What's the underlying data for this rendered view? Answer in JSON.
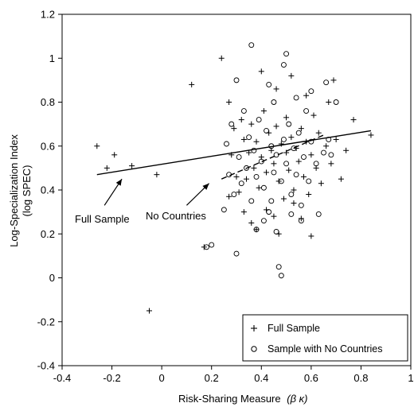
{
  "chart_data": {
    "type": "scatter",
    "xlabel": "Risk-Sharing Measure",
    "xlabel_symbol": "(β κ)",
    "ylabel_line1": "Log-Specialization Index",
    "ylabel_line2": "(log SPEC)",
    "xlim": [
      -0.4,
      1.0
    ],
    "ylim": [
      -0.4,
      1.2
    ],
    "x_ticks": [
      "-0.4",
      "-0.2",
      "0",
      "0.2",
      "0.4",
      "0.6",
      "0.8",
      "1"
    ],
    "y_ticks": [
      "-0.4",
      "-0.2",
      "0",
      "0.2",
      "0.4",
      "0.6",
      "0.8",
      "1",
      "1.2"
    ],
    "x_tick_values": [
      -0.4,
      -0.2,
      0,
      0.2,
      0.4,
      0.6,
      0.8,
      1.0
    ],
    "y_tick_values": [
      -0.4,
      -0.2,
      0,
      0.2,
      0.4,
      0.6,
      0.8,
      1.0,
      1.2
    ],
    "grid": false,
    "legend_position": "bottom-right",
    "annotations": [
      {
        "text": "Full Sample"
      },
      {
        "text": "No Countries"
      }
    ],
    "series": [
      {
        "name": "Full Sample",
        "marker": "plus",
        "points": [
          [
            -0.26,
            0.6
          ],
          [
            -0.22,
            0.5
          ],
          [
            -0.19,
            0.56
          ],
          [
            -0.12,
            0.51
          ],
          [
            -0.02,
            0.47
          ],
          [
            0.12,
            0.88
          ],
          [
            0.17,
            0.14
          ],
          [
            0.24,
            1.0
          ],
          [
            0.27,
            0.8
          ],
          [
            0.28,
            0.56
          ],
          [
            0.29,
            0.68
          ],
          [
            0.3,
            0.46
          ],
          [
            0.31,
            0.39
          ],
          [
            0.32,
            0.72
          ],
          [
            0.33,
            0.63
          ],
          [
            0.34,
            0.45
          ],
          [
            0.35,
            0.57
          ],
          [
            0.36,
            0.7
          ],
          [
            0.37,
            0.5
          ],
          [
            0.38,
            0.62
          ],
          [
            0.39,
            0.41
          ],
          [
            0.4,
            0.55
          ],
          [
            0.41,
            0.76
          ],
          [
            0.42,
            0.48
          ],
          [
            0.43,
            0.66
          ],
          [
            0.44,
            0.58
          ],
          [
            0.45,
            0.52
          ],
          [
            0.46,
            0.69
          ],
          [
            0.47,
            0.44
          ],
          [
            0.48,
            0.61
          ],
          [
            0.49,
            0.36
          ],
          [
            0.5,
            0.57
          ],
          [
            0.5,
            0.73
          ],
          [
            0.51,
            0.49
          ],
          [
            0.52,
            0.64
          ],
          [
            0.53,
            0.4
          ],
          [
            0.54,
            0.59
          ],
          [
            0.55,
            0.53
          ],
          [
            0.56,
            0.68
          ],
          [
            0.57,
            0.46
          ],
          [
            0.58,
            0.62
          ],
          [
            0.59,
            0.38
          ],
          [
            0.6,
            0.56
          ],
          [
            0.61,
            0.74
          ],
          [
            0.62,
            0.5
          ],
          [
            0.63,
            0.66
          ],
          [
            0.64,
            0.43
          ],
          [
            0.66,
            0.6
          ],
          [
            0.67,
            0.8
          ],
          [
            0.68,
            0.52
          ],
          [
            0.7,
            0.63
          ],
          [
            0.72,
            0.45
          ],
          [
            0.74,
            0.58
          ],
          [
            0.77,
            0.72
          ],
          [
            0.84,
            0.65
          ],
          [
            0.36,
            0.25
          ],
          [
            0.38,
            0.22
          ],
          [
            0.42,
            0.31
          ],
          [
            0.45,
            0.28
          ],
          [
            0.47,
            0.2
          ],
          [
            0.53,
            0.34
          ],
          [
            0.56,
            0.27
          ],
          [
            0.6,
            0.19
          ],
          [
            0.4,
            0.94
          ],
          [
            0.46,
            0.86
          ],
          [
            0.52,
            0.92
          ],
          [
            0.58,
            0.83
          ],
          [
            0.69,
            0.9
          ],
          [
            0.27,
            0.37
          ],
          [
            0.33,
            0.3
          ],
          [
            -0.05,
            -0.15
          ]
        ]
      },
      {
        "name": "Sample with No Countries",
        "marker": "circle",
        "points": [
          [
            0.18,
            0.14
          ],
          [
            0.2,
            0.15
          ],
          [
            0.25,
            0.31
          ],
          [
            0.26,
            0.61
          ],
          [
            0.27,
            0.47
          ],
          [
            0.28,
            0.7
          ],
          [
            0.29,
            0.38
          ],
          [
            0.3,
            0.9
          ],
          [
            0.3,
            0.11
          ],
          [
            0.31,
            0.55
          ],
          [
            0.32,
            0.43
          ],
          [
            0.33,
            0.76
          ],
          [
            0.34,
            0.5
          ],
          [
            0.35,
            0.64
          ],
          [
            0.36,
            1.06
          ],
          [
            0.36,
            0.35
          ],
          [
            0.37,
            0.58
          ],
          [
            0.38,
            0.46
          ],
          [
            0.39,
            0.72
          ],
          [
            0.4,
            0.53
          ],
          [
            0.41,
            0.41
          ],
          [
            0.42,
            0.67
          ],
          [
            0.43,
            0.3
          ],
          [
            0.44,
            0.6
          ],
          [
            0.45,
            0.48
          ],
          [
            0.45,
            0.8
          ],
          [
            0.46,
            0.56
          ],
          [
            0.47,
            0.05
          ],
          [
            0.48,
            0.01
          ],
          [
            0.48,
            0.44
          ],
          [
            0.49,
            0.63
          ],
          [
            0.49,
            0.97
          ],
          [
            0.5,
            1.02
          ],
          [
            0.5,
            0.52
          ],
          [
            0.51,
            0.7
          ],
          [
            0.52,
            0.38
          ],
          [
            0.53,
            0.59
          ],
          [
            0.54,
            0.47
          ],
          [
            0.55,
            0.66
          ],
          [
            0.56,
            0.33
          ],
          [
            0.57,
            0.55
          ],
          [
            0.58,
            0.76
          ],
          [
            0.59,
            0.44
          ],
          [
            0.6,
            0.62
          ],
          [
            0.62,
            0.52
          ],
          [
            0.63,
            0.29
          ],
          [
            0.65,
            0.57
          ],
          [
            0.66,
            0.89
          ],
          [
            0.67,
            0.63
          ],
          [
            0.68,
            0.56
          ],
          [
            0.7,
            0.8
          ],
          [
            0.38,
            0.22
          ],
          [
            0.41,
            0.26
          ],
          [
            0.44,
            0.35
          ],
          [
            0.46,
            0.21
          ],
          [
            0.52,
            0.29
          ],
          [
            0.56,
            0.26
          ],
          [
            0.6,
            0.85
          ],
          [
            0.43,
            0.88
          ],
          [
            0.54,
            0.82
          ]
        ]
      }
    ],
    "lines": [
      {
        "name": "Full Sample fit",
        "style": "solid",
        "from": [
          -0.26,
          0.47
        ],
        "to": [
          0.84,
          0.67
        ]
      },
      {
        "name": "No Countries fit",
        "style": "dashed",
        "from": [
          0.24,
          0.45
        ],
        "to": [
          0.65,
          0.65
        ]
      }
    ],
    "arrows": [
      {
        "from": [
          -0.23,
          0.33
        ],
        "to": [
          -0.16,
          0.45
        ]
      },
      {
        "from": [
          0.1,
          0.33
        ],
        "to": [
          0.19,
          0.43
        ]
      }
    ],
    "legend": [
      {
        "marker": "plus",
        "label": "Full Sample"
      },
      {
        "marker": "circle",
        "label": "Sample with No Countries"
      }
    ]
  }
}
